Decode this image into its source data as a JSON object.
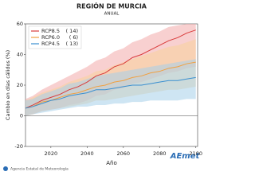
{
  "chart_data": {
    "type": "line-band",
    "title": "REGIÓN DE MURCIA",
    "subtitle": "ANUAL",
    "xlabel": "Año",
    "ylabel": "Cambio en días cálidos (%)",
    "x": [
      2006,
      2010,
      2015,
      2020,
      2025,
      2030,
      2035,
      2040,
      2045,
      2050,
      2055,
      2060,
      2065,
      2070,
      2075,
      2080,
      2085,
      2090,
      2095,
      2100
    ],
    "xlim": [
      2006,
      2101
    ],
    "xticks": [
      2020,
      2040,
      2060,
      2080,
      2100
    ],
    "ylim": [
      -20,
      60
    ],
    "yticks": [
      -20,
      0,
      20,
      40,
      60
    ],
    "zero_line": true,
    "legend": "top-left",
    "series": [
      {
        "name": "RCP8.5",
        "legend_note": "( 14)",
        "color": "#d93a3a",
        "band_color": "#f3a9a9",
        "values": [
          5,
          7,
          10,
          12,
          14,
          17,
          19,
          22,
          26,
          28,
          32,
          34,
          38,
          40,
          43,
          46,
          49,
          51,
          54,
          56
        ],
        "lower": [
          0,
          1,
          3,
          4,
          5,
          7,
          8,
          10,
          13,
          14,
          17,
          18,
          21,
          22,
          24,
          26,
          28,
          29,
          31,
          32
        ],
        "upper": [
          11,
          13,
          17,
          20,
          23,
          26,
          29,
          32,
          36,
          38,
          42,
          44,
          48,
          50,
          53,
          55,
          58,
          59,
          60,
          60
        ]
      },
      {
        "name": "RCP6.0",
        "legend_note": "(  6)",
        "color": "#f0a040",
        "band_color": "#f8d29a",
        "values": [
          5,
          6,
          9,
          10,
          12,
          14,
          15,
          17,
          19,
          20,
          22,
          23,
          25,
          26,
          28,
          29,
          31,
          32,
          34,
          35
        ],
        "lower": [
          0,
          1,
          3,
          4,
          5,
          6,
          7,
          8,
          10,
          10,
          11,
          12,
          13,
          14,
          15,
          16,
          17,
          17,
          18,
          19
        ],
        "upper": [
          10,
          12,
          15,
          17,
          19,
          22,
          24,
          26,
          29,
          30,
          33,
          35,
          37,
          39,
          41,
          43,
          45,
          46,
          48,
          50
        ]
      },
      {
        "name": "RCP4.5",
        "legend_note": "( 13)",
        "color": "#3a8fd0",
        "band_color": "#a6d0ea",
        "values": [
          5,
          6,
          8,
          10,
          11,
          13,
          14,
          15,
          17,
          17,
          18,
          19,
          20,
          20,
          21,
          22,
          23,
          23,
          24,
          25
        ],
        "lower": [
          0,
          1,
          2,
          3,
          4,
          5,
          6,
          6,
          7,
          7,
          8,
          8,
          9,
          9,
          10,
          10,
          10,
          10,
          11,
          11
        ],
        "upper": [
          10,
          11,
          14,
          16,
          18,
          21,
          22,
          24,
          26,
          27,
          28,
          29,
          30,
          31,
          32,
          33,
          34,
          35,
          36,
          37
        ]
      }
    ]
  },
  "footer": {
    "agency": "Agencia Estatal de Meteorología",
    "logo": "AEmet"
  }
}
